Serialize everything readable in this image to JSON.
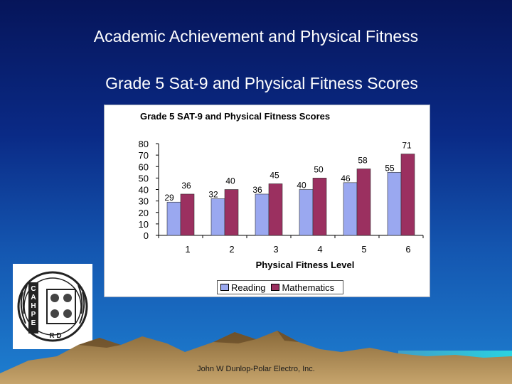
{
  "slide": {
    "title": "Academic Achievement and Physical Fitness",
    "subtitle": "Grade 5 Sat-9 and Physical Fitness Scores",
    "footer": "John W Dunlop-Polar Electro, Inc.",
    "logo_text": "CAHPERD"
  },
  "chart_data": {
    "type": "bar",
    "title": "Grade 5 SAT-9 and Physical Fitness Scores",
    "xlabel": "Physical Fitness Level",
    "ylabel": "",
    "categories": [
      "1",
      "2",
      "3",
      "4",
      "5",
      "6"
    ],
    "ylim": [
      0,
      80
    ],
    "yticks": [
      0,
      10,
      20,
      30,
      40,
      50,
      60,
      70,
      80
    ],
    "grid": false,
    "legend_position": "bottom",
    "series": [
      {
        "name": "Reading",
        "values": [
          29,
          32,
          36,
          40,
          46,
          55
        ],
        "color": "#9aa8f0"
      },
      {
        "name": "Mathematics",
        "values": [
          36,
          40,
          45,
          50,
          58,
          71
        ],
        "color": "#9b3060"
      }
    ]
  }
}
